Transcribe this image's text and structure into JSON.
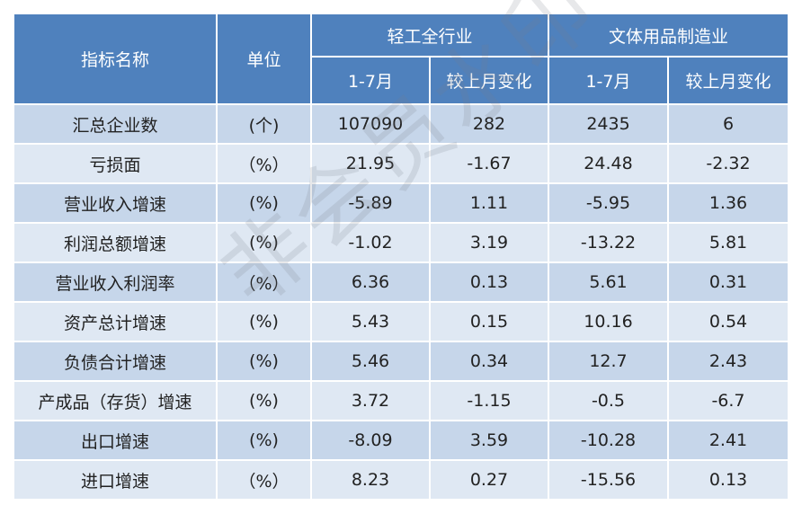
{
  "table": {
    "header": {
      "name": "指标名称",
      "unit": "单位",
      "groups": [
        "轻工全行业",
        "文体用品制造业"
      ],
      "subs": [
        "1-7月",
        "较上月变化",
        "1-7月",
        "较上月变化"
      ]
    },
    "rows": [
      [
        "汇总企业数",
        "(个)",
        107090,
        282,
        2435,
        6
      ],
      [
        "亏损面",
        "（%）",
        21.95,
        -1.67,
        24.48,
        -2.32
      ],
      [
        "营业收入增速",
        "(%)",
        -5.89,
        1.11,
        -5.95,
        1.36
      ],
      [
        "利润总额增速",
        "(%)",
        -1.02,
        3.19,
        -13.22,
        5.81
      ],
      [
        "营业收入利润率",
        "（%）",
        6.36,
        0.13,
        5.61,
        0.31
      ],
      [
        "资产总计增速",
        "(%)",
        5.43,
        0.15,
        10.16,
        0.54
      ],
      [
        "负债合计增速",
        "(%)",
        5.46,
        0.34,
        12.7,
        2.43
      ],
      [
        "产成品（存货）增速",
        "(%)",
        3.72,
        -1.15,
        -0.5,
        -6.7
      ],
      [
        "出口增速",
        "(%)",
        -8.09,
        3.59,
        -10.28,
        2.41
      ],
      [
        "进口增速",
        "（%）",
        8.23,
        0.27,
        -15.56,
        0.13
      ]
    ]
  },
  "watermark": "非会员水印"
}
